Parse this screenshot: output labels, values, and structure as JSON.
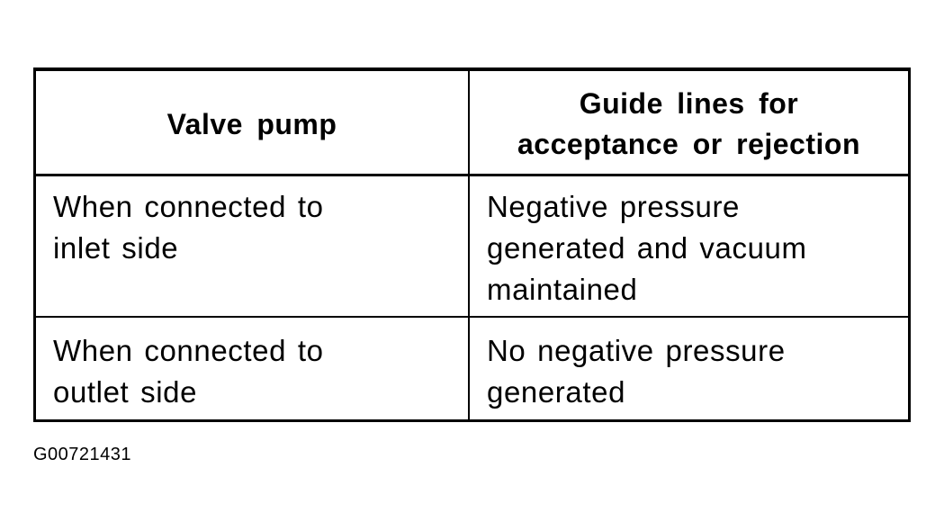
{
  "table": {
    "headers": [
      "Valve pump",
      "Guide lines for acceptance or rejection"
    ],
    "header_lines": {
      "col1": [
        "Valve pump"
      ],
      "col2": [
        "Guide lines for",
        "acceptance or rejection"
      ]
    },
    "rows": [
      {
        "condition": [
          "When connected to",
          "inlet side"
        ],
        "guideline": [
          "Negative pressure",
          "generated and vacuum",
          "maintained"
        ]
      },
      {
        "condition": [
          "When connected to",
          "outlet side"
        ],
        "guideline": [
          "No negative pressure",
          "generated"
        ]
      }
    ]
  },
  "figure_code": "G00721431"
}
